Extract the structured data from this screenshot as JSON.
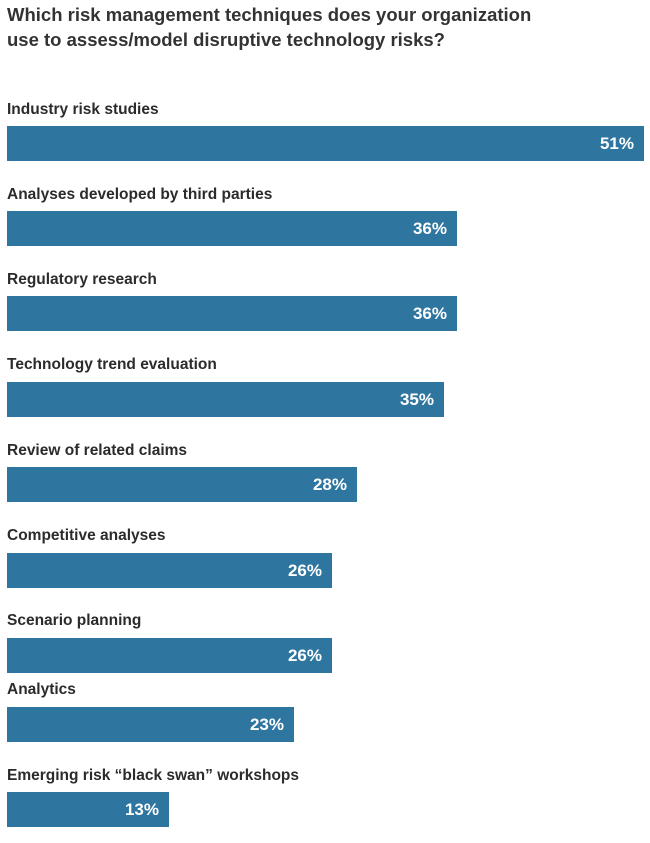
{
  "chart_data": {
    "type": "bar",
    "orientation": "horizontal",
    "title": "Which risk management techniques does your organization use to assess/model disruptive technology risks?",
    "categories": [
      "Industry risk studies",
      "Analyses developed by third parties",
      "Regulatory research",
      "Technology trend evaluation",
      "Review of related claims",
      "Competitive analyses",
      "Scenario planning",
      "Analytics",
      "Emerging risk “black swan” workshops"
    ],
    "values": [
      51,
      36,
      36,
      35,
      28,
      26,
      26,
      23,
      13
    ],
    "value_labels": [
      "51%",
      "36%",
      "36%",
      "35%",
      "28%",
      "26%",
      "26%",
      "23%",
      "13%"
    ],
    "unit": "%",
    "xlim": [
      0,
      51
    ],
    "grid": false,
    "legend": "none",
    "bar_color": "#2e76a0",
    "value_label_color": "#ffffff"
  }
}
